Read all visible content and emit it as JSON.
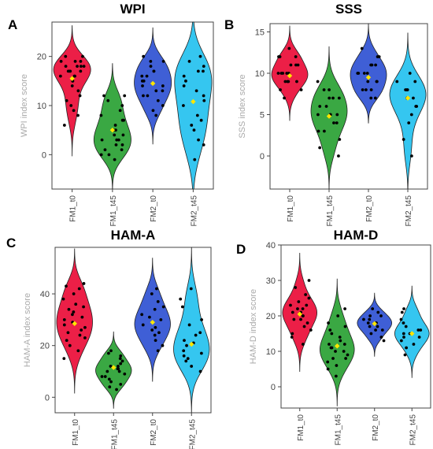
{
  "panels": [
    {
      "letter": "A",
      "chart_data": {
        "type": "violin",
        "title": "WPI",
        "ylabel": "WPI index score",
        "ylim": [
          -7,
          27
        ],
        "yticks": [
          0,
          10,
          20
        ],
        "categories": [
          "FM1_t0",
          "FM1_t45",
          "FM2_t0",
          "FM2_t45"
        ],
        "colors": [
          "#ec1f47",
          "#3aa843",
          "#3f5fd6",
          "#35c6f0"
        ],
        "series": [
          {
            "values": [
              6,
              8,
              9,
              10,
              11,
              12,
              13,
              14,
              15,
              15,
              16,
              16,
              16,
              17,
              17,
              17,
              17,
              18,
              18,
              18,
              18,
              19,
              19,
              19,
              20,
              20
            ],
            "mean": 15.5
          },
          {
            "values": [
              -1,
              0,
              0,
              1,
              1,
              2,
              2,
              3,
              3,
              3,
              4,
              4,
              5,
              5,
              6,
              7,
              7,
              8,
              9,
              10,
              11,
              12,
              12
            ],
            "mean": 5
          },
          {
            "values": [
              8,
              9,
              10,
              11,
              12,
              12,
              13,
              13,
              14,
              14,
              15,
              15,
              16,
              16,
              17,
              17,
              18,
              19,
              19,
              20
            ],
            "mean": 14.5
          },
          {
            "values": [
              -1,
              2,
              3,
              5,
              6,
              7,
              8,
              10,
              11,
              12,
              13,
              14,
              15,
              16,
              17,
              17,
              18,
              19,
              20
            ],
            "mean": 10.8
          }
        ]
      }
    },
    {
      "letter": "B",
      "chart_data": {
        "type": "violin",
        "title": "SSS",
        "ylabel": "SSS index score",
        "ylim": [
          -4,
          16
        ],
        "yticks": [
          0,
          5,
          10,
          15
        ],
        "categories": [
          "FM1_t0",
          "FM1_t45",
          "FM2_t0",
          "FM2_t45"
        ],
        "colors": [
          "#ec1f47",
          "#3aa843",
          "#3f5fd6",
          "#35c6f0"
        ],
        "series": [
          {
            "values": [
              7,
              8,
              8,
              9,
              9,
              9,
              9,
              10,
              10,
              10,
              10,
              10,
              11,
              11,
              11,
              12,
              12,
              12,
              13
            ],
            "mean": 9.7
          },
          {
            "values": [
              0,
              1,
              2,
              3,
              3,
              4,
              4,
              5,
              5,
              5,
              5,
              6,
              6,
              7,
              7,
              7,
              8,
              8,
              9
            ],
            "mean": 4.8
          },
          {
            "values": [
              7,
              7,
              8,
              8,
              8,
              9,
              9,
              9,
              10,
              10,
              10,
              10,
              11,
              11,
              11,
              12,
              12,
              13
            ],
            "mean": 9.5
          },
          {
            "values": [
              0,
              2,
              4,
              5,
              6,
              6,
              7,
              7,
              7,
              8,
              8,
              8,
              9,
              9,
              10
            ],
            "mean": 7.0
          }
        ]
      }
    },
    {
      "letter": "C",
      "chart_data": {
        "type": "violin",
        "title": "HAM-A",
        "ylabel": "HAM-A index score",
        "ylim": [
          -6,
          58
        ],
        "yticks": [
          0,
          20,
          40
        ],
        "categories": [
          "FM1_t0",
          "FM1_t45",
          "FM2_t0",
          "FM2_t45"
        ],
        "colors": [
          "#ec1f47",
          "#3aa843",
          "#3f5fd6",
          "#35c6f0"
        ],
        "series": [
          {
            "values": [
              15,
              18,
              20,
              22,
              23,
              24,
              25,
              26,
              27,
              28,
              29,
              30,
              31,
              32,
              33,
              34,
              35,
              36,
              38,
              40,
              42,
              43,
              44
            ],
            "mean": 28.5
          },
          {
            "values": [
              3,
              4,
              5,
              6,
              7,
              8,
              8,
              9,
              10,
              10,
              11,
              11,
              12,
              12,
              13,
              14,
              15,
              16,
              17,
              18
            ],
            "mean": 11.5
          },
          {
            "values": [
              18,
              20,
              22,
              24,
              25,
              26,
              27,
              28,
              29,
              30,
              31,
              32,
              34,
              35,
              37,
              40,
              42
            ],
            "mean": 29
          },
          {
            "values": [
              10,
              12,
              14,
              15,
              16,
              17,
              18,
              20,
              21,
              22,
              24,
              25,
              28,
              30,
              35,
              38,
              42
            ],
            "mean": 20.5
          }
        ]
      }
    },
    {
      "letter": "D",
      "chart_data": {
        "type": "violin",
        "title": "HAM-D",
        "ylabel": "HAM-D index score",
        "ylim": [
          -6,
          40
        ],
        "yticks": [
          0,
          10,
          20,
          30,
          40
        ],
        "categories": [
          "FM1_t0",
          "FM1_t45",
          "FM2_t0",
          "FM2_t45"
        ],
        "colors": [
          "#ec1f47",
          "#3aa843",
          "#3f5fd6",
          "#35c6f0"
        ],
        "series": [
          {
            "values": [
              12,
              14,
              15,
              16,
              17,
              18,
              19,
              19,
              20,
              20,
              21,
              21,
              22,
              22,
              23,
              23,
              24,
              25,
              26,
              28,
              30
            ],
            "mean": 20.5
          },
          {
            "values": [
              3,
              5,
              6,
              7,
              8,
              8,
              9,
              10,
              10,
              11,
              11,
              12,
              12,
              13,
              14,
              15,
              16,
              17,
              18,
              20,
              22
            ],
            "mean": 11.5
          },
          {
            "values": [
              13,
              14,
              15,
              16,
              16,
              17,
              17,
              18,
              18,
              18,
              19,
              19,
              20,
              20,
              21,
              22
            ],
            "mean": 17.8
          },
          {
            "values": [
              9,
              11,
              12,
              13,
              14,
              14,
              15,
              15,
              16,
              16,
              17,
              18,
              19,
              21,
              22
            ],
            "mean": 15
          }
        ]
      }
    }
  ]
}
